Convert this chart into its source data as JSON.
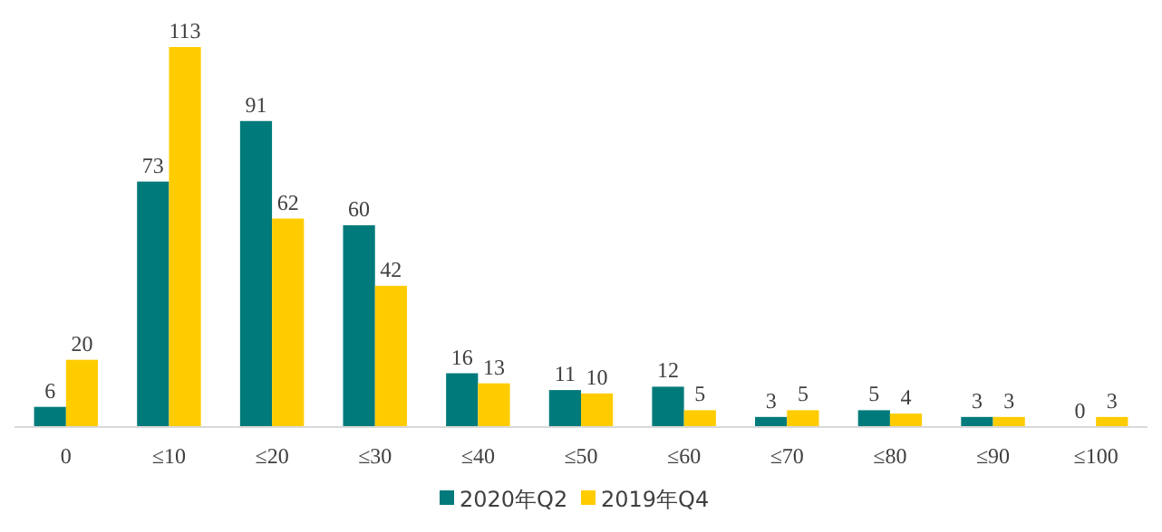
{
  "chart_data": {
    "type": "bar",
    "categories": [
      "0",
      "≤10",
      "≤20",
      "≤30",
      "≤40",
      "≤50",
      "≤60",
      "≤70",
      "≤80",
      "≤90",
      "≤100"
    ],
    "series": [
      {
        "name": "2020年Q2",
        "color": "#007a7a",
        "values": [
          6,
          73,
          91,
          60,
          16,
          11,
          12,
          3,
          5,
          3,
          0
        ]
      },
      {
        "name": "2019年Q4",
        "color": "#ffcc00",
        "values": [
          20,
          113,
          62,
          42,
          13,
          10,
          5,
          5,
          4,
          3,
          3
        ]
      }
    ],
    "data_labels": true,
    "legend": "bottom"
  }
}
